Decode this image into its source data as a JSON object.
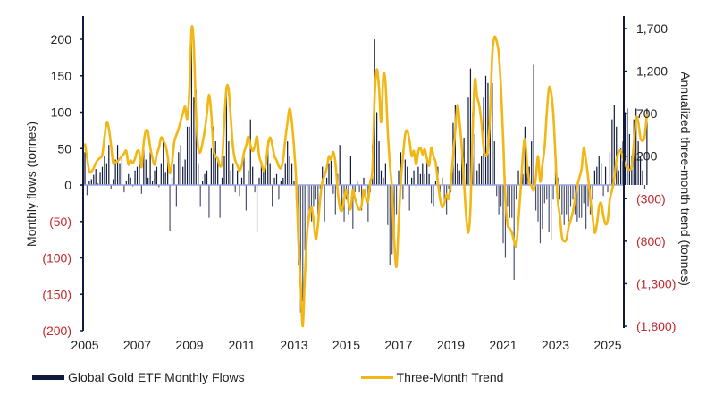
{
  "chart_data": {
    "type": "bar+line",
    "title": "",
    "ylabel_left": "Monthly flows (tonnes)",
    "ylabel_right": "Annualized three-month trend (tonnes)",
    "ylim_left": [
      -200,
      200
    ],
    "ylim_right": [
      -1800,
      1700
    ],
    "yticks_left": [
      {
        "value": 200,
        "label": "200"
      },
      {
        "value": 150,
        "label": "150"
      },
      {
        "value": 100,
        "label": "100"
      },
      {
        "value": 50,
        "label": "50"
      },
      {
        "value": 0,
        "label": "0"
      },
      {
        "value": -50,
        "label": "(50)"
      },
      {
        "value": -100,
        "label": "(100)"
      },
      {
        "value": -150,
        "label": "(150)"
      },
      {
        "value": -200,
        "label": "(200)"
      }
    ],
    "yticks_right": [
      {
        "value": 1700,
        "label": "1,700"
      },
      {
        "value": 1200,
        "label": "1,200"
      },
      {
        "value": 700,
        "label": "700"
      },
      {
        "value": 200,
        "label": "200"
      },
      {
        "value": -300,
        "label": "(300)"
      },
      {
        "value": -800,
        "label": "(800)"
      },
      {
        "value": -1300,
        "label": "(1,300)"
      },
      {
        "value": -1800,
        "label": "(1,800)"
      }
    ],
    "xticks": [
      "2005",
      "2007",
      "2009",
      "2011",
      "2013",
      "2015",
      "2017",
      "2019",
      "2021",
      "2023",
      "2025"
    ],
    "xlim": [
      2005.0,
      2025.6
    ],
    "negative_label_color": "#c0282d",
    "legend": {
      "placement": "bottom-left",
      "entries": [
        "Global Gold ETF Monthly Flows",
        "Three-Month Trend"
      ]
    },
    "series": [
      {
        "name": "Global Gold ETF Monthly Flows",
        "kind": "bar",
        "color": "#101a3f",
        "start": "2005-01",
        "values": [
          45,
          -14,
          5,
          8,
          14,
          22,
          2,
          18,
          25,
          40,
          30,
          55,
          -6,
          8,
          35,
          55,
          30,
          40,
          -10,
          5,
          15,
          10,
          -2,
          20,
          25,
          30,
          -12,
          55,
          35,
          10,
          45,
          5,
          20,
          25,
          -3,
          30,
          60,
          18,
          40,
          -63,
          10,
          28,
          -30,
          45,
          55,
          25,
          35,
          80,
          80,
          215,
          120,
          130,
          30,
          -30,
          5,
          15,
          20,
          -45,
          50,
          80,
          60,
          35,
          -45,
          10,
          40,
          135,
          60,
          20,
          30,
          -10,
          20,
          -15,
          10,
          45,
          -35,
          20,
          90,
          25,
          -10,
          -65,
          10,
          30,
          20,
          40,
          60,
          30,
          -30,
          10,
          15,
          -20,
          5,
          10,
          30,
          60,
          40,
          30,
          5,
          -20,
          -110,
          -175,
          -160,
          -90,
          -60,
          -40,
          -50,
          -30,
          -20,
          -40,
          -5,
          25,
          -50,
          10,
          30,
          35,
          -12,
          -40,
          15,
          55,
          -30,
          -50,
          -20,
          -40,
          40,
          -60,
          -10,
          5,
          -10,
          -35,
          10,
          -20,
          -50,
          -10,
          55,
          200,
          100,
          60,
          20,
          10,
          30,
          -55,
          -110,
          -95,
          -75,
          -40,
          20,
          45,
          -20,
          35,
          25,
          -35,
          10,
          20,
          -5,
          25,
          15,
          30,
          15,
          40,
          15,
          -25,
          -30,
          5,
          25,
          -10,
          10,
          -25,
          -40,
          -5,
          -10,
          85,
          110,
          30,
          20,
          60,
          65,
          30,
          120,
          160,
          100,
          70,
          20,
          30,
          40,
          120,
          150,
          140,
          100,
          140,
          60,
          -15,
          -40,
          -30,
          -80,
          -100,
          -30,
          -45,
          -45,
          -130,
          -20,
          20,
          -15,
          15,
          80,
          20,
          25,
          60,
          165,
          -35,
          -50,
          -80,
          -60,
          -25,
          -20,
          -65,
          -75,
          -20,
          30,
          10,
          -20,
          -40,
          -55,
          -40,
          -50,
          -30,
          -20,
          -40,
          -50,
          -45,
          -45,
          -25,
          -60,
          -30,
          -40,
          -20,
          20,
          25,
          40,
          30,
          -15,
          25,
          -10,
          45,
          90,
          110,
          80,
          20,
          50,
          60,
          100,
          105,
          70,
          40,
          90,
          105,
          60,
          40,
          20,
          -5,
          105
        ]
      },
      {
        "name": "Three-Month Trend",
        "kind": "line",
        "color": "#f2b715",
        "start": "2005-01",
        "values": [
          350,
          180,
          20,
          20,
          60,
          120,
          160,
          180,
          220,
          420,
          600,
          520,
          330,
          120,
          130,
          140,
          170,
          200,
          230,
          260,
          100,
          150,
          120,
          170,
          260,
          240,
          70,
          360,
          500,
          480,
          300,
          180,
          100,
          220,
          300,
          420,
          380,
          330,
          200,
          0,
          120,
          360,
          450,
          520,
          620,
          700,
          780,
          640,
          1000,
          1700,
          1500,
          700,
          300,
          250,
          360,
          500,
          700,
          920,
          700,
          300,
          200,
          170,
          80,
          150,
          620,
          1000,
          980,
          640,
          300,
          150,
          90,
          30,
          90,
          240,
          320,
          430,
          330,
          260,
          320,
          430,
          200,
          120,
          30,
          100,
          320,
          420,
          330,
          200,
          150,
          80,
          60,
          160,
          400,
          600,
          760,
          600,
          300,
          -100,
          -800,
          -1300,
          -1800,
          -1200,
          -700,
          -500,
          -400,
          -560,
          -780,
          -600,
          -300,
          -100,
          -30,
          60,
          200,
          160,
          250,
          120,
          -200,
          -400,
          -440,
          -300,
          -200,
          -350,
          -420,
          -200,
          -300,
          -380,
          -430,
          -380,
          -200,
          -300,
          -330,
          -100,
          50,
          900,
          1220,
          1000,
          600,
          1150,
          1050,
          500,
          100,
          -200,
          -800,
          -1100,
          -600,
          -100,
          200,
          450,
          500,
          380,
          200,
          260,
          100,
          250,
          300,
          220,
          280,
          170,
          90,
          300,
          200,
          120,
          -100,
          -300,
          -400,
          -350,
          -250,
          -300,
          -100,
          200,
          500,
          800,
          600,
          300,
          -100,
          -500,
          -700,
          -400,
          500,
          1100,
          900,
          800,
          600,
          300,
          200,
          300,
          700,
          1400,
          1600,
          1550,
          1400,
          1000,
          400,
          -300,
          -600,
          -650,
          -700,
          -800,
          -850,
          -550,
          -200,
          200,
          400,
          100,
          -100,
          -150,
          -200,
          -50,
          200,
          -100,
          100,
          300,
          700,
          1000,
          950,
          700,
          200,
          -300,
          -500,
          -750,
          -800,
          -780,
          -640,
          -550,
          -450,
          -300,
          -150,
          -50,
          50,
          300,
          150,
          -50,
          -300,
          -500,
          -700,
          -600,
          -400,
          -350,
          -500,
          -600,
          -550,
          -300,
          -200,
          -60,
          150,
          250,
          260,
          180,
          100,
          60,
          40,
          80,
          350,
          650,
          600,
          420,
          380,
          440,
          700
        ]
      }
    ]
  },
  "legend": {
    "bars_label": "Global Gold ETF Monthly Flows",
    "line_label": "Three-Month Trend"
  }
}
